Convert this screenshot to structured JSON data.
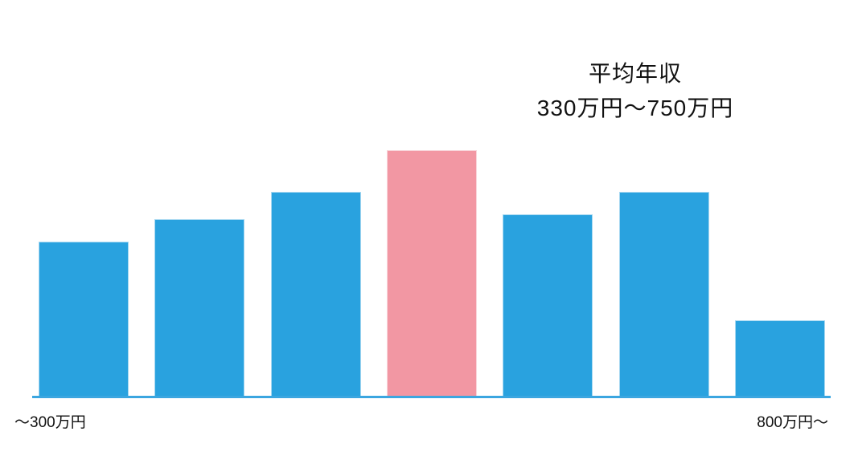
{
  "title": {
    "line1": "平均年収",
    "line2": "330万円～750万円"
  },
  "x_axis": {
    "left_label": "～300万円",
    "right_label": "800万円～"
  },
  "colors": {
    "bar": "#29A2DF",
    "bar_border": "#A6D8F1",
    "highlight": "#F297A3",
    "highlight_border": "#F8D6DB",
    "axis_line": "#3BA6E0",
    "text": "#111111",
    "background": "#FFFFFF"
  },
  "chart_data": {
    "type": "bar",
    "title": "平均年収 330万円～750万円",
    "categories": [
      "～300万円",
      "",
      "",
      "",
      "",
      "",
      "800万円～"
    ],
    "values": [
      63,
      72,
      83,
      100,
      74,
      83,
      31
    ],
    "value_scale": "relative bar height, tallest bar = 100 (no value axis shown in chart)",
    "highlighted_index": 3,
    "xlabel": "",
    "ylabel": "",
    "ylim": [
      0,
      100
    ],
    "grid": false,
    "legend": false
  }
}
